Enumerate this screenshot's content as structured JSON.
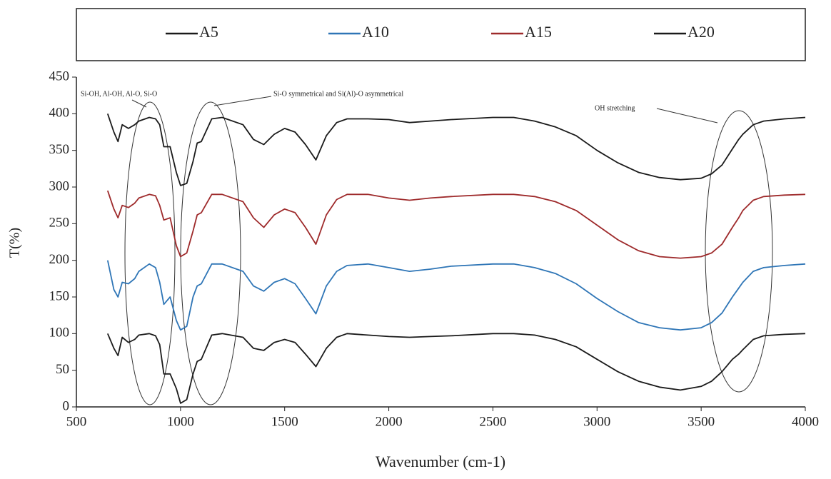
{
  "chart_data": {
    "type": "line",
    "x": [
      650,
      680,
      700,
      720,
      750,
      780,
      800,
      850,
      880,
      900,
      920,
      950,
      980,
      1000,
      1030,
      1060,
      1080,
      1100,
      1150,
      1200,
      1300,
      1350,
      1400,
      1450,
      1500,
      1550,
      1600,
      1650,
      1700,
      1750,
      1800,
      1900,
      2000,
      2100,
      2200,
      2300,
      2500,
      2600,
      2700,
      2800,
      2900,
      3000,
      3100,
      3200,
      3300,
      3400,
      3500,
      3550,
      3600,
      3650,
      3680,
      3700,
      3750,
      3800,
      3900,
      4000
    ],
    "series": [
      {
        "name": "A5",
        "color": "#1a1a1a",
        "values": [
          100,
          80,
          70,
          95,
          88,
          92,
          98,
          100,
          97,
          85,
          45,
          45,
          25,
          5,
          10,
          45,
          62,
          65,
          98,
          100,
          95,
          80,
          77,
          88,
          92,
          88,
          72,
          55,
          80,
          95,
          100,
          98,
          96,
          95,
          96,
          97,
          100,
          100,
          98,
          92,
          82,
          65,
          48,
          35,
          27,
          23,
          28,
          35,
          48,
          65,
          72,
          78,
          92,
          97,
          99,
          100
        ]
      },
      {
        "name": "A10",
        "color": "#2e75b6",
        "values": [
          200,
          160,
          150,
          170,
          168,
          175,
          185,
          195,
          190,
          170,
          140,
          150,
          118,
          105,
          110,
          150,
          165,
          168,
          195,
          195,
          185,
          165,
          158,
          170,
          175,
          168,
          148,
          127,
          165,
          185,
          193,
          195,
          190,
          185,
          188,
          192,
          195,
          195,
          190,
          182,
          168,
          148,
          130,
          115,
          108,
          105,
          108,
          115,
          128,
          150,
          162,
          170,
          185,
          190,
          193,
          195
        ]
      },
      {
        "name": "A15",
        "color": "#9e2a2b",
        "values": [
          295,
          270,
          258,
          275,
          272,
          278,
          285,
          290,
          288,
          275,
          255,
          258,
          220,
          205,
          210,
          240,
          262,
          265,
          290,
          290,
          280,
          258,
          245,
          262,
          270,
          265,
          245,
          222,
          262,
          283,
          290,
          290,
          285,
          282,
          285,
          287,
          290,
          290,
          287,
          280,
          268,
          248,
          228,
          213,
          205,
          203,
          205,
          210,
          222,
          245,
          258,
          268,
          282,
          287,
          289,
          290
        ]
      },
      {
        "name": "A20",
        "color": "#1a1a1a",
        "values": [
          400,
          375,
          362,
          385,
          380,
          385,
          390,
          395,
          393,
          385,
          355,
          355,
          320,
          302,
          305,
          335,
          360,
          362,
          393,
          395,
          385,
          365,
          358,
          372,
          380,
          375,
          358,
          337,
          370,
          388,
          393,
          393,
          392,
          388,
          390,
          392,
          395,
          395,
          390,
          382,
          370,
          350,
          333,
          320,
          313,
          310,
          312,
          318,
          330,
          352,
          365,
          372,
          385,
          390,
          393,
          395
        ]
      }
    ],
    "xlabel": "Wavenumber (cm-1)",
    "ylabel": "T(%)",
    "xlim": [
      500,
      4000
    ],
    "xticks": [
      500,
      1000,
      1500,
      2000,
      2500,
      3000,
      3500,
      4000
    ],
    "ylim": [
      0,
      450
    ],
    "yticks": [
      0,
      50,
      100,
      150,
      200,
      250,
      300,
      350,
      400,
      450
    ],
    "annotations": [
      "Si-OH, Al-OH, Al-O, Si-O",
      "Si-O symmetrical and Si(Al)-O asymmetrical",
      "OH stretching"
    ],
    "legend": "top",
    "grid": false
  }
}
